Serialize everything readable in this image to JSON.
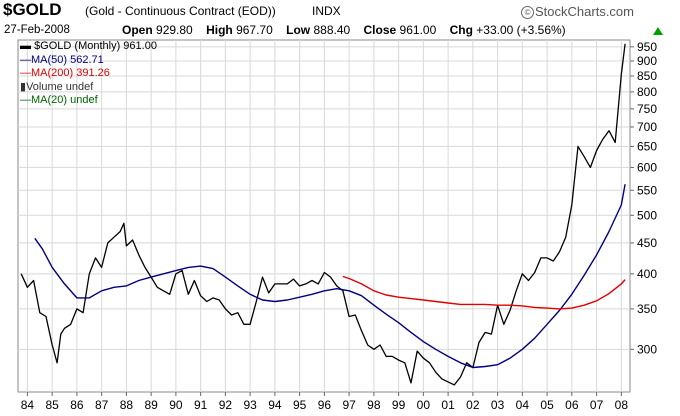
{
  "header": {
    "symbol": "$GOLD",
    "description": "(Gold - Continuous Contract (EOD))",
    "exchange": "INDX",
    "brand": "StockCharts.com",
    "brand_mark": "©",
    "date": "27-Feb-2008",
    "open_label": "Open",
    "open": "929.80",
    "high_label": "High",
    "high": "967.70",
    "low_label": "Low",
    "low": "888.40",
    "close_label": "Close",
    "close": "961.00",
    "chg_label": "Chg",
    "chg": "+33.00 (+3.56%)",
    "up_color": "#00a000"
  },
  "legend": [
    {
      "marker": "▬",
      "text": "$GOLD (Monthly) 961.00",
      "color": "#000000"
    },
    {
      "marker": "—",
      "text": "MA(50) 562.71",
      "color": "#000080"
    },
    {
      "marker": "—",
      "text": "MA(200) 391.26",
      "color": "#e00000"
    },
    {
      "marker": "▮",
      "text": "Volume undef",
      "color": "#333333"
    },
    {
      "marker": "—",
      "text": "MA(20) undef",
      "color": "#006400"
    }
  ],
  "chart_data": {
    "type": "line",
    "y_scale": "log",
    "ylim": [
      255,
      975
    ],
    "y_ticks": [
      950,
      900,
      850,
      800,
      750,
      700,
      650,
      600,
      550,
      500,
      450,
      400,
      350,
      300
    ],
    "x_ticks": [
      "84",
      "85",
      "86",
      "87",
      "88",
      "89",
      "90",
      "91",
      "92",
      "93",
      "94",
      "95",
      "96",
      "97",
      "98",
      "99",
      "00",
      "01",
      "02",
      "03",
      "04",
      "05",
      "06",
      "07",
      "08"
    ],
    "grid": true,
    "legend_position": "top-left",
    "series": [
      {
        "name": "$GOLD (Monthly)",
        "color": "#000000",
        "x": [
          1983.75,
          1984.0,
          1984.25,
          1984.5,
          1984.75,
          1985.0,
          1985.2,
          1985.35,
          1985.5,
          1985.75,
          1986.0,
          1986.25,
          1986.5,
          1986.75,
          1987.0,
          1987.25,
          1987.5,
          1987.75,
          1987.9,
          1988.0,
          1988.25,
          1988.5,
          1988.75,
          1989.0,
          1989.25,
          1989.5,
          1989.75,
          1990.0,
          1990.25,
          1990.5,
          1990.75,
          1991.0,
          1991.25,
          1991.5,
          1991.75,
          1992.0,
          1992.25,
          1992.5,
          1992.75,
          1993.0,
          1993.25,
          1993.5,
          1993.75,
          1994.0,
          1994.25,
          1994.5,
          1994.75,
          1995.0,
          1995.25,
          1995.5,
          1995.75,
          1996.0,
          1996.25,
          1996.5,
          1996.75,
          1997.0,
          1997.25,
          1997.5,
          1997.75,
          1998.0,
          1998.25,
          1998.5,
          1998.75,
          1999.0,
          1999.25,
          1999.5,
          1999.75,
          2000.0,
          2000.25,
          2000.5,
          2000.75,
          2001.0,
          2001.25,
          2001.5,
          2001.75,
          2002.0,
          2002.25,
          2002.5,
          2002.75,
          2003.0,
          2003.25,
          2003.5,
          2003.75,
          2004.0,
          2004.25,
          2004.5,
          2004.75,
          2005.0,
          2005.25,
          2005.5,
          2005.75,
          2006.0,
          2006.25,
          2006.5,
          2006.75,
          2007.0,
          2007.25,
          2007.5,
          2007.75,
          2008.0,
          2008.15
        ],
        "values": [
          400,
          380,
          390,
          345,
          340,
          305,
          285,
          318,
          325,
          330,
          350,
          345,
          400,
          425,
          410,
          450,
          460,
          470,
          485,
          445,
          455,
          430,
          410,
          395,
          380,
          375,
          370,
          400,
          405,
          370,
          390,
          368,
          360,
          365,
          362,
          350,
          342,
          345,
          330,
          330,
          360,
          395,
          372,
          385,
          385,
          385,
          392,
          382,
          385,
          390,
          385,
          402,
          395,
          382,
          375,
          340,
          342,
          322,
          305,
          300,
          305,
          292,
          292,
          288,
          285,
          264,
          298,
          290,
          285,
          275,
          268,
          265,
          262,
          270,
          285,
          280,
          308,
          320,
          318,
          355,
          330,
          348,
          375,
          400,
          390,
          402,
          425,
          425,
          420,
          435,
          460,
          520,
          650,
          625,
          600,
          640,
          668,
          690,
          660,
          855,
          961
        ]
      },
      {
        "name": "MA(50)",
        "color": "#000080",
        "x": [
          1984.3,
          1984.6,
          1985.0,
          1985.5,
          1986.0,
          1986.5,
          1987.0,
          1987.5,
          1988.0,
          1988.5,
          1989.0,
          1989.5,
          1990.0,
          1990.5,
          1991.0,
          1991.5,
          1992.0,
          1992.5,
          1993.0,
          1993.5,
          1994.0,
          1994.5,
          1995.0,
          1995.5,
          1996.0,
          1996.5,
          1997.0,
          1997.5,
          1998.0,
          1998.5,
          1999.0,
          1999.5,
          2000.0,
          2000.5,
          2001.0,
          2001.5,
          2002.0,
          2002.5,
          2003.0,
          2003.5,
          2004.0,
          2004.5,
          2005.0,
          2005.5,
          2006.0,
          2006.5,
          2007.0,
          2007.5,
          2008.0,
          2008.15
        ],
        "values": [
          458,
          440,
          410,
          385,
          365,
          365,
          375,
          380,
          382,
          390,
          395,
          400,
          405,
          410,
          412,
          408,
          395,
          382,
          370,
          362,
          360,
          362,
          366,
          370,
          375,
          378,
          375,
          368,
          355,
          343,
          332,
          320,
          309,
          300,
          292,
          285,
          280,
          281,
          283,
          290,
          300,
          313,
          330,
          348,
          370,
          398,
          430,
          470,
          520,
          562.71
        ]
      },
      {
        "name": "MA(200)",
        "color": "#e00000",
        "x": [
          1996.75,
          1997.0,
          1997.5,
          1998.0,
          1998.5,
          1999.0,
          1999.5,
          2000.0,
          2000.5,
          2001.0,
          2001.5,
          2002.0,
          2002.5,
          2003.0,
          2003.5,
          2004.0,
          2004.5,
          2005.0,
          2005.5,
          2006.0,
          2006.5,
          2007.0,
          2007.5,
          2008.0,
          2008.15
        ],
        "values": [
          396,
          393,
          385,
          375,
          369,
          366,
          364,
          362,
          360,
          358,
          356,
          356,
          356,
          355,
          355,
          354,
          352,
          351,
          350,
          351,
          355,
          361,
          371,
          385,
          391.26
        ]
      }
    ]
  }
}
